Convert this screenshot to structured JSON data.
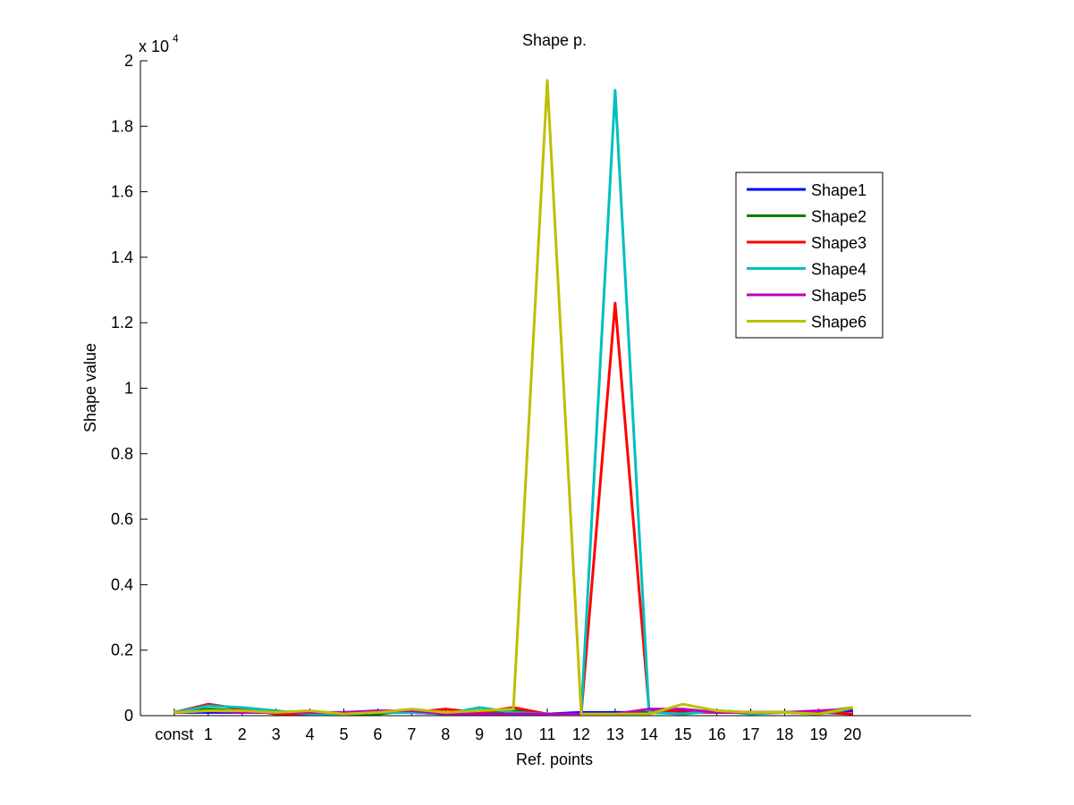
{
  "chart_data": {
    "type": "line",
    "title": "Shape p.",
    "xlabel": "Ref. points",
    "ylabel": "Shape value",
    "y_exponent_label": "x 10",
    "y_exponent_power": "4",
    "categories": [
      "const",
      "1",
      "2",
      "3",
      "4",
      "5",
      "6",
      "7",
      "8",
      "9",
      "10",
      "11",
      "12",
      "13",
      "14",
      "15",
      "16",
      "17",
      "18",
      "19",
      "20"
    ],
    "xlim": [
      0,
      24.5
    ],
    "ylim": [
      0,
      20000
    ],
    "yticks": [
      0,
      2000,
      4000,
      6000,
      8000,
      10000,
      12000,
      14000,
      16000,
      18000,
      20000
    ],
    "ytick_labels": [
      "0",
      "0.2",
      "0.4",
      "0.6",
      "0.8",
      "1",
      "1.2",
      "1.4",
      "1.6",
      "1.8",
      "2"
    ],
    "grid": false,
    "legend_position": "upper-right",
    "series": [
      {
        "name": "Shape1",
        "color": "#0000ff",
        "values": [
          100,
          100,
          100,
          100,
          50,
          100,
          100,
          100,
          50,
          100,
          80,
          50,
          100,
          100,
          100,
          150,
          100,
          100,
          100,
          100,
          150
        ]
      },
      {
        "name": "Shape2",
        "color": "#008000",
        "values": [
          100,
          200,
          150,
          100,
          100,
          50,
          50,
          150,
          100,
          100,
          150,
          50,
          50,
          50,
          100,
          100,
          150,
          100,
          100,
          100,
          250
        ]
      },
      {
        "name": "Shape3",
        "color": "#ff0000",
        "values": [
          100,
          350,
          200,
          50,
          50,
          50,
          100,
          100,
          200,
          100,
          250,
          50,
          50,
          12600,
          200,
          100,
          100,
          100,
          100,
          100,
          50
        ]
      },
      {
        "name": "Shape4",
        "color": "#00bfbf",
        "values": [
          100,
          300,
          250,
          150,
          50,
          50,
          100,
          100,
          50,
          250,
          100,
          50,
          50,
          19100,
          100,
          50,
          150,
          50,
          100,
          50,
          200
        ]
      },
      {
        "name": "Shape5",
        "color": "#bf00bf",
        "values": [
          100,
          150,
          100,
          100,
          100,
          100,
          150,
          150,
          50,
          50,
          50,
          50,
          50,
          50,
          200,
          200,
          100,
          100,
          100,
          150,
          200
        ]
      },
      {
        "name": "Shape6",
        "color": "#bfbf00",
        "values": [
          100,
          150,
          150,
          100,
          150,
          50,
          100,
          200,
          100,
          150,
          200,
          19400,
          50,
          50,
          50,
          350,
          150,
          100,
          100,
          50,
          250
        ]
      }
    ]
  }
}
